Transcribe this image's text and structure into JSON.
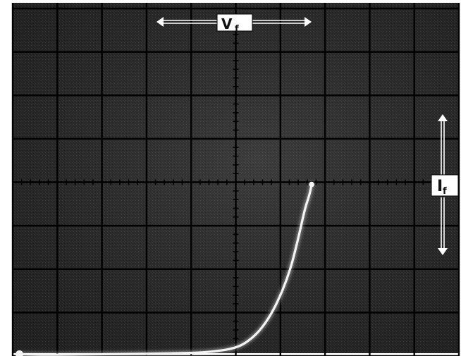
{
  "chart_data": {
    "type": "line",
    "title": "",
    "x_label": {
      "main": "V",
      "sub": "f"
    },
    "y_label": {
      "main": "I",
      "sub": "f"
    },
    "grid": true,
    "grid_divisions": {
      "x": 10,
      "y": 8
    },
    "xlim": [
      -5,
      5
    ],
    "ylim": [
      -4,
      4
    ],
    "series": [
      {
        "x": [
          -4.85,
          -4.5,
          -4.0,
          -3.0,
          -2.0,
          -1.0,
          -0.5,
          0.0,
          0.3,
          0.6,
          0.9,
          1.2,
          1.4,
          1.55,
          1.65,
          1.7
        ],
        "y": [
          -3.96,
          -3.97,
          -3.97,
          -3.96,
          -3.95,
          -3.93,
          -3.9,
          -3.82,
          -3.65,
          -3.35,
          -2.85,
          -2.1,
          -1.3,
          -0.6,
          -0.3,
          -0.05
        ]
      }
    ],
    "colors": {
      "screen": "#2a2a2a",
      "grid": "#000000",
      "trace": "#f4f4f4",
      "label_box": "#ffffff",
      "arrow": "#ffffff"
    }
  }
}
